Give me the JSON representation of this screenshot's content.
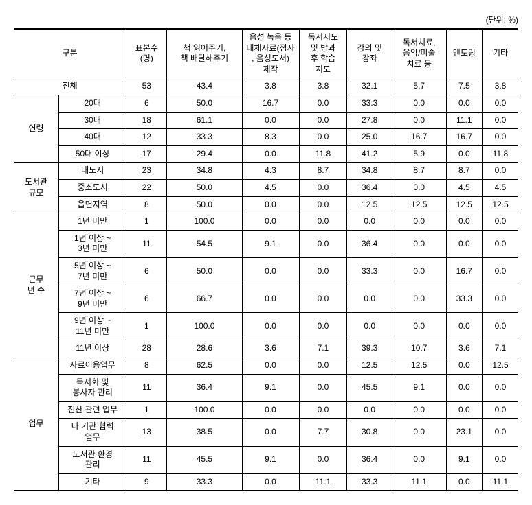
{
  "unit_label": "(단위: %)",
  "headers": {
    "gubun": "구분",
    "sample": "표본수\n(명)",
    "c1": "책 읽어주기,\n책 배달해주기",
    "c2": "음성 녹음 등\n대체자료(점자\n, 음성도서)\n제작",
    "c3": "독서지도\n및 방과\n후 학습\n지도",
    "c4": "강의 및\n강좌",
    "c5": "독서치료,\n음악/미술\n치료 등",
    "c6": "멘토링",
    "c7": "기타"
  },
  "total_row": {
    "label": "전체",
    "values": [
      "53",
      "43.4",
      "3.8",
      "3.8",
      "32.1",
      "5.7",
      "7.5",
      "3.8"
    ]
  },
  "groups": [
    {
      "label": "연령",
      "rows": [
        {
          "label": "20대",
          "values": [
            "6",
            "50.0",
            "16.7",
            "0.0",
            "33.3",
            "0.0",
            "0.0",
            "0.0"
          ]
        },
        {
          "label": "30대",
          "values": [
            "18",
            "61.1",
            "0.0",
            "0.0",
            "27.8",
            "0.0",
            "11.1",
            "0.0"
          ]
        },
        {
          "label": "40대",
          "values": [
            "12",
            "33.3",
            "8.3",
            "0.0",
            "25.0",
            "16.7",
            "16.7",
            "0.0"
          ]
        },
        {
          "label": "50대 이상",
          "values": [
            "17",
            "29.4",
            "0.0",
            "11.8",
            "41.2",
            "5.9",
            "0.0",
            "11.8"
          ]
        }
      ]
    },
    {
      "label": "도서관\n규모",
      "rows": [
        {
          "label": "대도시",
          "values": [
            "23",
            "34.8",
            "4.3",
            "8.7",
            "34.8",
            "8.7",
            "8.7",
            "0.0"
          ]
        },
        {
          "label": "중소도시",
          "values": [
            "22",
            "50.0",
            "4.5",
            "0.0",
            "36.4",
            "0.0",
            "4.5",
            "4.5"
          ]
        },
        {
          "label": "읍면지역",
          "values": [
            "8",
            "50.0",
            "0.0",
            "0.0",
            "12.5",
            "12.5",
            "12.5",
            "12.5"
          ]
        }
      ]
    },
    {
      "label": "근무\n년 수",
      "rows": [
        {
          "label": "1년 미만",
          "values": [
            "1",
            "100.0",
            "0.0",
            "0.0",
            "0.0",
            "0.0",
            "0.0",
            "0.0"
          ]
        },
        {
          "label": "1년 이상 ~\n3년 미만",
          "values": [
            "11",
            "54.5",
            "9.1",
            "0.0",
            "36.4",
            "0.0",
            "0.0",
            "0.0"
          ]
        },
        {
          "label": "5년 이상 ~\n7년 미만",
          "values": [
            "6",
            "50.0",
            "0.0",
            "0.0",
            "33.3",
            "0.0",
            "16.7",
            "0.0"
          ]
        },
        {
          "label": "7년 이상 ~\n9년 미만",
          "values": [
            "6",
            "66.7",
            "0.0",
            "0.0",
            "0.0",
            "0.0",
            "33.3",
            "0.0"
          ]
        },
        {
          "label": "9년 이상 ~\n11년 미만",
          "values": [
            "1",
            "100.0",
            "0.0",
            "0.0",
            "0.0",
            "0.0",
            "0.0",
            "0.0"
          ]
        },
        {
          "label": "11년 이상",
          "values": [
            "28",
            "28.6",
            "3.6",
            "7.1",
            "39.3",
            "10.7",
            "3.6",
            "7.1"
          ]
        }
      ]
    },
    {
      "label": "업무",
      "rows": [
        {
          "label": "자료이용업무",
          "values": [
            "8",
            "62.5",
            "0.0",
            "0.0",
            "12.5",
            "12.5",
            "0.0",
            "12.5"
          ]
        },
        {
          "label": "독서회 및\n봉사자 관리",
          "values": [
            "11",
            "36.4",
            "9.1",
            "0.0",
            "45.5",
            "9.1",
            "0.0",
            "0.0"
          ]
        },
        {
          "label": "전산 관련 업무",
          "values": [
            "1",
            "100.0",
            "0.0",
            "0.0",
            "0.0",
            "0.0",
            "0.0",
            "0.0"
          ]
        },
        {
          "label": "타 기관 협력\n업무",
          "values": [
            "13",
            "38.5",
            "0.0",
            "7.7",
            "30.8",
            "0.0",
            "23.1",
            "0.0"
          ]
        },
        {
          "label": "도서관 환경\n관리",
          "values": [
            "11",
            "45.5",
            "9.1",
            "0.0",
            "36.4",
            "0.0",
            "9.1",
            "0.0"
          ]
        },
        {
          "label": "기타",
          "values": [
            "9",
            "33.3",
            "0.0",
            "11.1",
            "33.3",
            "11.1",
            "0.0",
            "11.1"
          ]
        }
      ]
    }
  ],
  "col_widths": [
    "60",
    "90",
    "54",
    "100",
    "76",
    "64",
    "60",
    "72",
    "48",
    "48"
  ]
}
